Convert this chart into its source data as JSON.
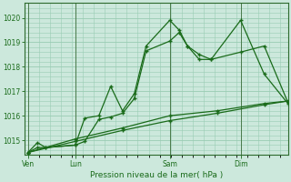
{
  "bg_color": "#cce8dc",
  "grid_color": "#99ccb3",
  "line_color": "#1a6b1a",
  "line_color2": "#2d8b2d",
  "xlabel": "Pression niveau de la mer( hPa )",
  "ylim": [
    1014.4,
    1020.6
  ],
  "yticks": [
    1015,
    1016,
    1017,
    1018,
    1019,
    1020
  ],
  "xtick_labels": [
    "Ven",
    "Lun",
    "Sam",
    "Dim"
  ],
  "xtick_positions": [
    0,
    4,
    12,
    18
  ],
  "xlim": [
    -0.3,
    22
  ],
  "s1_x": [
    0,
    0.8,
    1.5,
    4,
    4.8,
    6,
    7,
    8,
    9,
    10,
    12,
    12.8,
    13.5,
    14.5,
    15.5,
    18,
    20,
    22
  ],
  "s1_y": [
    1014.5,
    1014.9,
    1014.7,
    1014.8,
    1015.9,
    1016.0,
    1017.2,
    1016.2,
    1016.9,
    1018.85,
    1019.9,
    1019.5,
    1018.85,
    1018.3,
    1018.3,
    1019.9,
    1017.7,
    1016.5
  ],
  "s2_x": [
    0,
    0.8,
    1.5,
    4,
    4.8,
    6,
    7,
    8,
    9,
    10,
    12,
    12.8,
    13.5,
    14.5,
    15.5,
    18,
    20,
    22
  ],
  "s2_y": [
    1014.5,
    1014.7,
    1014.7,
    1014.8,
    1014.95,
    1015.85,
    1015.95,
    1016.1,
    1016.7,
    1018.65,
    1019.05,
    1019.4,
    1018.85,
    1018.5,
    1018.3,
    1018.6,
    1018.85,
    1016.55
  ],
  "s3_x": [
    0,
    4,
    8,
    12,
    16,
    20,
    22
  ],
  "s3_y": [
    1014.5,
    1014.95,
    1015.4,
    1015.8,
    1016.1,
    1016.45,
    1016.6
  ],
  "s4_x": [
    0,
    4,
    8,
    12,
    16,
    20,
    22
  ],
  "s4_y": [
    1014.5,
    1015.05,
    1015.5,
    1016.0,
    1016.2,
    1016.5,
    1016.6
  ],
  "vline_positions": [
    0,
    4,
    12,
    18
  ]
}
